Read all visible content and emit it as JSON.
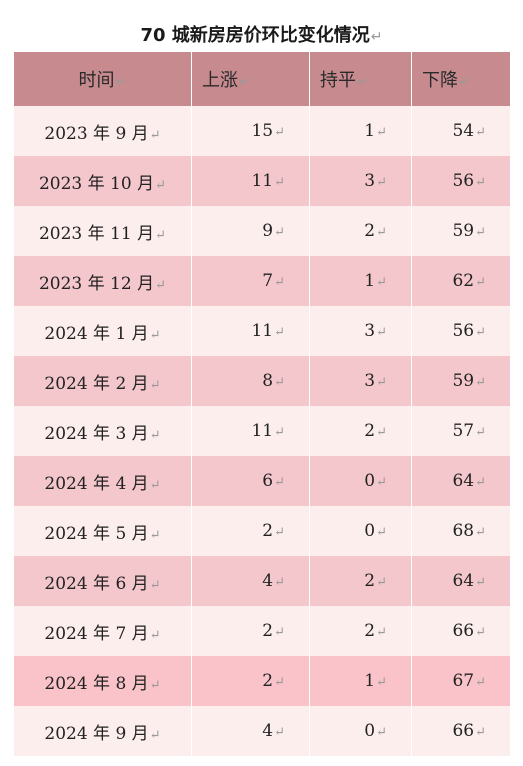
{
  "title": "70 城新房房价环比变化情况",
  "paragraph_mark": "↵",
  "colors": {
    "header_bg": "#c78a8f",
    "row_light": "#fdeeee",
    "row_dark": "#f4c7cd"
  },
  "table": {
    "headers": [
      "时间",
      "上涨",
      "持平",
      "下降"
    ],
    "rows": [
      [
        "2023 年 9 月",
        "15",
        "1",
        "54"
      ],
      [
        "2023 年 10 月",
        "11",
        "3",
        "56"
      ],
      [
        "2023 年 11 月",
        "9",
        "2",
        "59"
      ],
      [
        "2023 年 12 月",
        "7",
        "1",
        "62"
      ],
      [
        "2024 年 1 月",
        "11",
        "3",
        "56"
      ],
      [
        "2024 年 2 月",
        "8",
        "3",
        "59"
      ],
      [
        "2024 年 3 月",
        "11",
        "2",
        "57"
      ],
      [
        "2024 年 4 月",
        "6",
        "0",
        "64"
      ],
      [
        "2024 年 5 月",
        "2",
        "0",
        "68"
      ],
      [
        "2024 年 6 月",
        "4",
        "2",
        "64"
      ],
      [
        "2024 年 7 月",
        "2",
        "2",
        "66"
      ],
      [
        "2024 年 8 月",
        "2",
        "1",
        "67"
      ],
      [
        "2024 年 9 月",
        "4",
        "0",
        "66"
      ]
    ]
  }
}
